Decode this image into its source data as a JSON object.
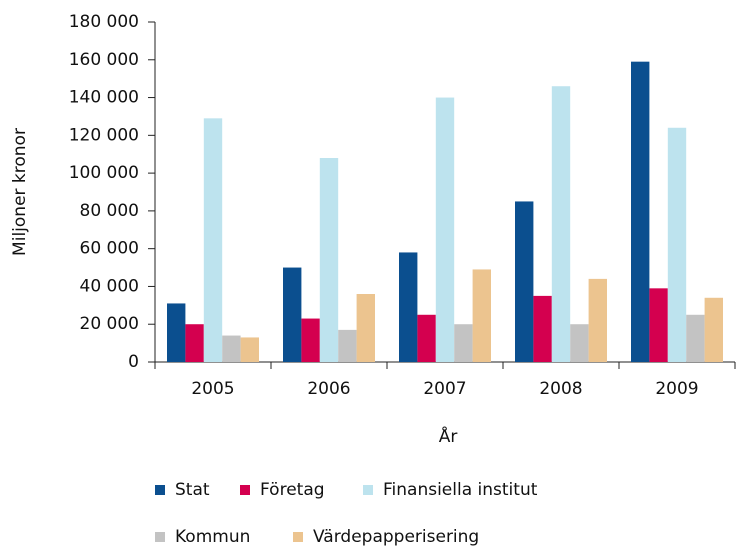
{
  "chart_data": {
    "type": "bar",
    "x_label": "År",
    "y_label": "Miljoner kronor",
    "categories": [
      "2005",
      "2006",
      "2007",
      "2008",
      "2009"
    ],
    "series": [
      {
        "name": "Stat",
        "color": "#0b4f8f",
        "values": [
          31000,
          50000,
          58000,
          85000,
          159000
        ]
      },
      {
        "name": "Företag",
        "color": "#d4004f",
        "values": [
          20000,
          23000,
          25000,
          35000,
          39000
        ]
      },
      {
        "name": "Finansiella institut",
        "color": "#bde3ee",
        "values": [
          129000,
          108000,
          140000,
          146000,
          124000
        ]
      },
      {
        "name": "Kommun",
        "color": "#c3c3c3",
        "values": [
          14000,
          17000,
          20000,
          20000,
          25000
        ]
      },
      {
        "name": "Värdepapperisering",
        "color": "#ecc48f",
        "values": [
          13000,
          36000,
          49000,
          44000,
          34000
        ]
      }
    ],
    "ylim": [
      0,
      180000
    ],
    "yticks": [
      0,
      {
        "value": 20000,
        "label": "20 000"
      },
      {
        "value": 40000,
        "label": "40 000"
      },
      {
        "value": 60000,
        "label": "60 000"
      },
      {
        "value": 80000,
        "label": "80 000"
      },
      {
        "value": 100000,
        "label": "100 000"
      },
      {
        "value": 120000,
        "label": "120 000"
      },
      {
        "value": 140000,
        "label": "140 000"
      },
      {
        "value": 160000,
        "label": "160 000"
      },
      {
        "value": 180000,
        "label": "180 000"
      }
    ],
    "grid": false
  }
}
